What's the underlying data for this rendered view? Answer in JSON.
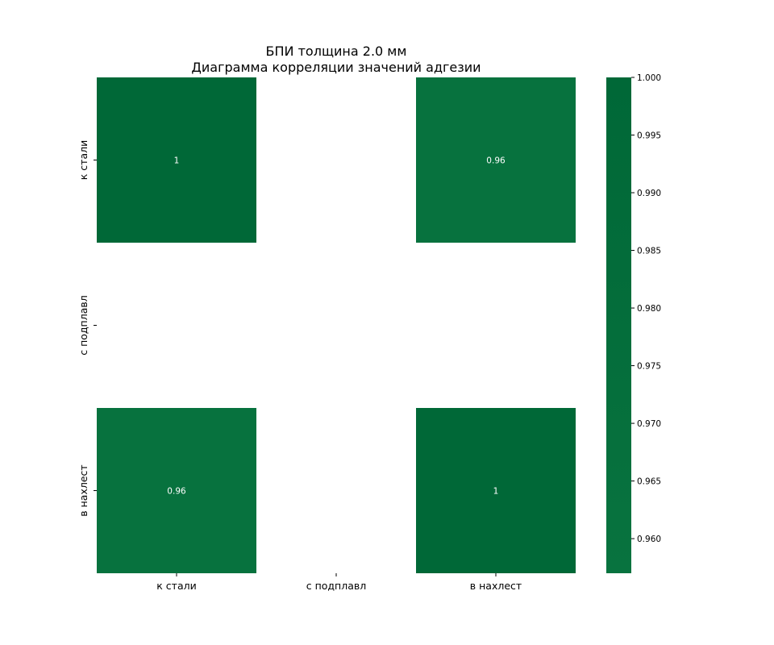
{
  "chart_data": {
    "type": "heatmap",
    "title_line1": "БПИ толщина 2.0 мм",
    "title_line2": "Диаграмма корреляции значений адгезии",
    "x_labels": [
      "к стали",
      "с подплавл",
      "в нахлест"
    ],
    "y_labels": [
      "к стали",
      "с подплавл",
      "в нахлест"
    ],
    "matrix": [
      [
        1.0,
        null,
        0.96
      ],
      [
        null,
        null,
        null
      ],
      [
        0.96,
        null,
        1.0
      ]
    ],
    "annotations": [
      [
        "1",
        "",
        "0.96"
      ],
      [
        "",
        "",
        ""
      ],
      [
        "0.96",
        "",
        "1"
      ]
    ],
    "colorbar": {
      "vmin": 0.957,
      "vmax": 1.0,
      "ticks": [
        0.96,
        0.965,
        0.97,
        0.975,
        0.98,
        0.985,
        0.99,
        0.995,
        1.0
      ],
      "tick_labels": [
        "0.960",
        "0.965",
        "0.970",
        "0.975",
        "0.980",
        "0.985",
        "0.990",
        "0.995",
        "1.000"
      ],
      "color_low": "#08733f",
      "color_high": "#006837"
    }
  }
}
